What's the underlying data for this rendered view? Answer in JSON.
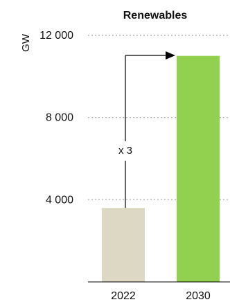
{
  "chart_data": {
    "type": "bar",
    "title": "Renewables",
    "ylabel": "GW",
    "categories": [
      "2022",
      "2030"
    ],
    "values": [
      3600,
      11000
    ],
    "ylim": [
      0,
      12000
    ],
    "yticks": [
      4000,
      8000,
      12000
    ],
    "ytick_labels": [
      "4 000",
      "8 000",
      "12 000"
    ],
    "grid": true,
    "annotation": "x 3",
    "colors": {
      "bar_2022": "#ddd8c4",
      "bar_2030": "#92d050",
      "grid": "#a6a6a6",
      "axis": "#000000",
      "arrow": "#000000"
    }
  }
}
